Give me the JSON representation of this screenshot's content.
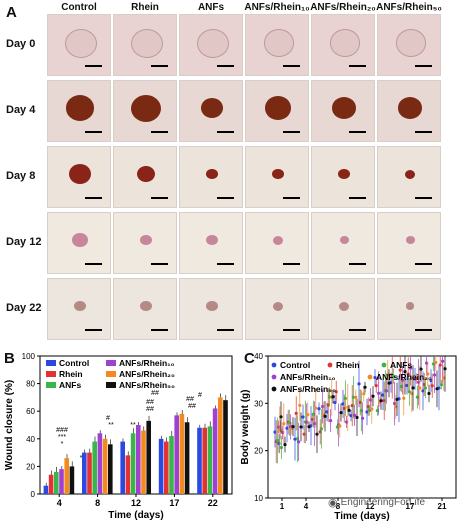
{
  "panelA": {
    "label": "A",
    "columns": [
      "Control",
      "Rhein",
      "ANFs",
      "ANFs/Rhein₁₀",
      "ANFs/Rhein₂₀",
      "ANFs/Rhein₅₀"
    ],
    "rows": [
      "Day 0",
      "Day 4",
      "Day 8",
      "Day 12",
      "Day 22"
    ]
  },
  "panelB": {
    "label": "B",
    "chart_data": {
      "type": "bar",
      "categories": [
        "4",
        "8",
        "12",
        "17",
        "22"
      ],
      "xlabel": "Time (days)",
      "ylabel": "Wound closure (%)",
      "ylim": [
        0,
        100
      ],
      "yticks": [
        0,
        20,
        40,
        60,
        80,
        100
      ],
      "series": [
        {
          "name": "Control",
          "color": "#2b48e0",
          "values": [
            6,
            30,
            38,
            40,
            48
          ]
        },
        {
          "name": "Rhein",
          "color": "#e23232",
          "values": [
            14,
            30,
            28,
            38,
            48
          ]
        },
        {
          "name": "ANFs",
          "color": "#3ab54a",
          "values": [
            16,
            38,
            44,
            42,
            49
          ]
        },
        {
          "name": "ANFs/Rhein₁₀",
          "color": "#a040d0",
          "values": [
            18,
            44,
            50,
            57,
            62
          ]
        },
        {
          "name": "ANFs/Rhein₂₀",
          "color": "#f28a20",
          "values": [
            26,
            40,
            46,
            58,
            70
          ]
        },
        {
          "name": "ANFs/Rhein₅₀",
          "color": "#111111",
          "values": [
            20,
            36,
            53,
            52,
            68
          ]
        }
      ],
      "annotations": [
        "*",
        "***",
        "###",
        "**",
        "#",
        "**",
        "##",
        "##",
        "##",
        "##",
        "##",
        "#",
        "*"
      ]
    }
  },
  "panelC": {
    "label": "C",
    "chart_data": {
      "type": "scatter",
      "xlabel": "Time (days)",
      "ylabel": "Body weight (g)",
      "xticks": [
        "1",
        "4",
        "8",
        "12",
        "17",
        "21"
      ],
      "ylim": [
        10,
        40
      ],
      "yticks": [
        10,
        20,
        30,
        40
      ],
      "series": [
        {
          "name": "Control",
          "color": "#2b48e0"
        },
        {
          "name": "Rhein",
          "color": "#e23232"
        },
        {
          "name": "ANFs",
          "color": "#3ab54a"
        },
        {
          "name": "ANFs/Rhein₁₀",
          "color": "#a040d0"
        },
        {
          "name": "ANFs/Rhein₂₀",
          "color": "#f28a20"
        },
        {
          "name": "ANFs/Rhein₅₀",
          "color": "#111111"
        }
      ]
    }
  },
  "watermark": "EngineeringForLife"
}
